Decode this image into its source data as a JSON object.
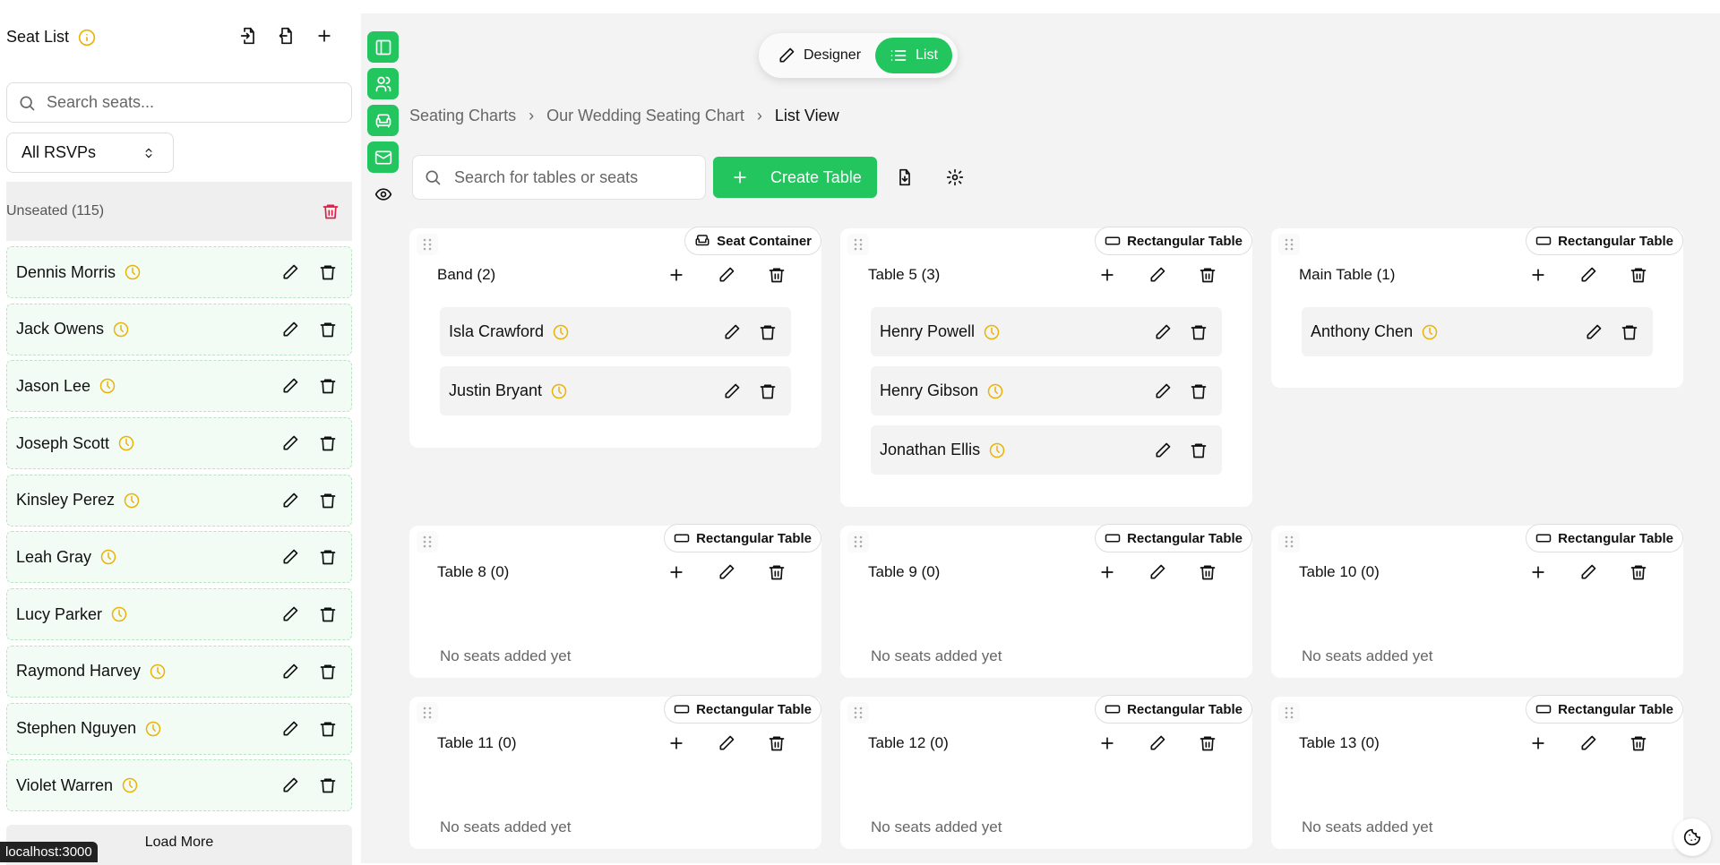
{
  "sidebar": {
    "title": "Seat List",
    "search_placeholder": "Search seats...",
    "rsvp_filter": "All RSVPs",
    "unseated_label": "Unseated (115)",
    "load_more": "Load More",
    "guests": [
      {
        "name": "Dennis Morris"
      },
      {
        "name": "Jack Owens"
      },
      {
        "name": "Jason Lee"
      },
      {
        "name": "Joseph Scott"
      },
      {
        "name": "Kinsley Perez"
      },
      {
        "name": "Leah Gray"
      },
      {
        "name": "Lucy Parker"
      },
      {
        "name": "Raymond Harvey"
      },
      {
        "name": "Stephen Nguyen"
      },
      {
        "name": "Violet Warren"
      }
    ]
  },
  "status_url": "localhost:3000",
  "toggle": {
    "designer": "Designer",
    "list": "List",
    "active": "List"
  },
  "breadcrumb": [
    "Seating Charts",
    "Our Wedding Seating Chart",
    "List View"
  ],
  "toolbar": {
    "search_placeholder": "Search for tables or seats",
    "create_label": "Create Table"
  },
  "colors": {
    "accent": "#22c55e",
    "pending": "#eab308",
    "danger": "#e11d48"
  },
  "empty_text": "No seats added yet",
  "tables": [
    {
      "name": "Band (2)",
      "type": "Seat Container",
      "seats": [
        "Isla Crawford",
        "Justin Bryant"
      ]
    },
    {
      "name": "Table 5 (3)",
      "type": "Rectangular Table",
      "seats": [
        "Henry Powell",
        "Henry Gibson",
        "Jonathan Ellis"
      ]
    },
    {
      "name": "Main Table (1)",
      "type": "Rectangular Table",
      "seats": [
        "Anthony Chen"
      ]
    },
    {
      "name": "Table 8 (0)",
      "type": "Rectangular Table",
      "seats": []
    },
    {
      "name": "Table 9 (0)",
      "type": "Rectangular Table",
      "seats": []
    },
    {
      "name": "Table 10 (0)",
      "type": "Rectangular Table",
      "seats": []
    },
    {
      "name": "Table 11 (0)",
      "type": "Rectangular Table",
      "seats": []
    },
    {
      "name": "Table 12 (0)",
      "type": "Rectangular Table",
      "seats": []
    },
    {
      "name": "Table 13 (0)",
      "type": "Rectangular Table",
      "seats": []
    }
  ]
}
